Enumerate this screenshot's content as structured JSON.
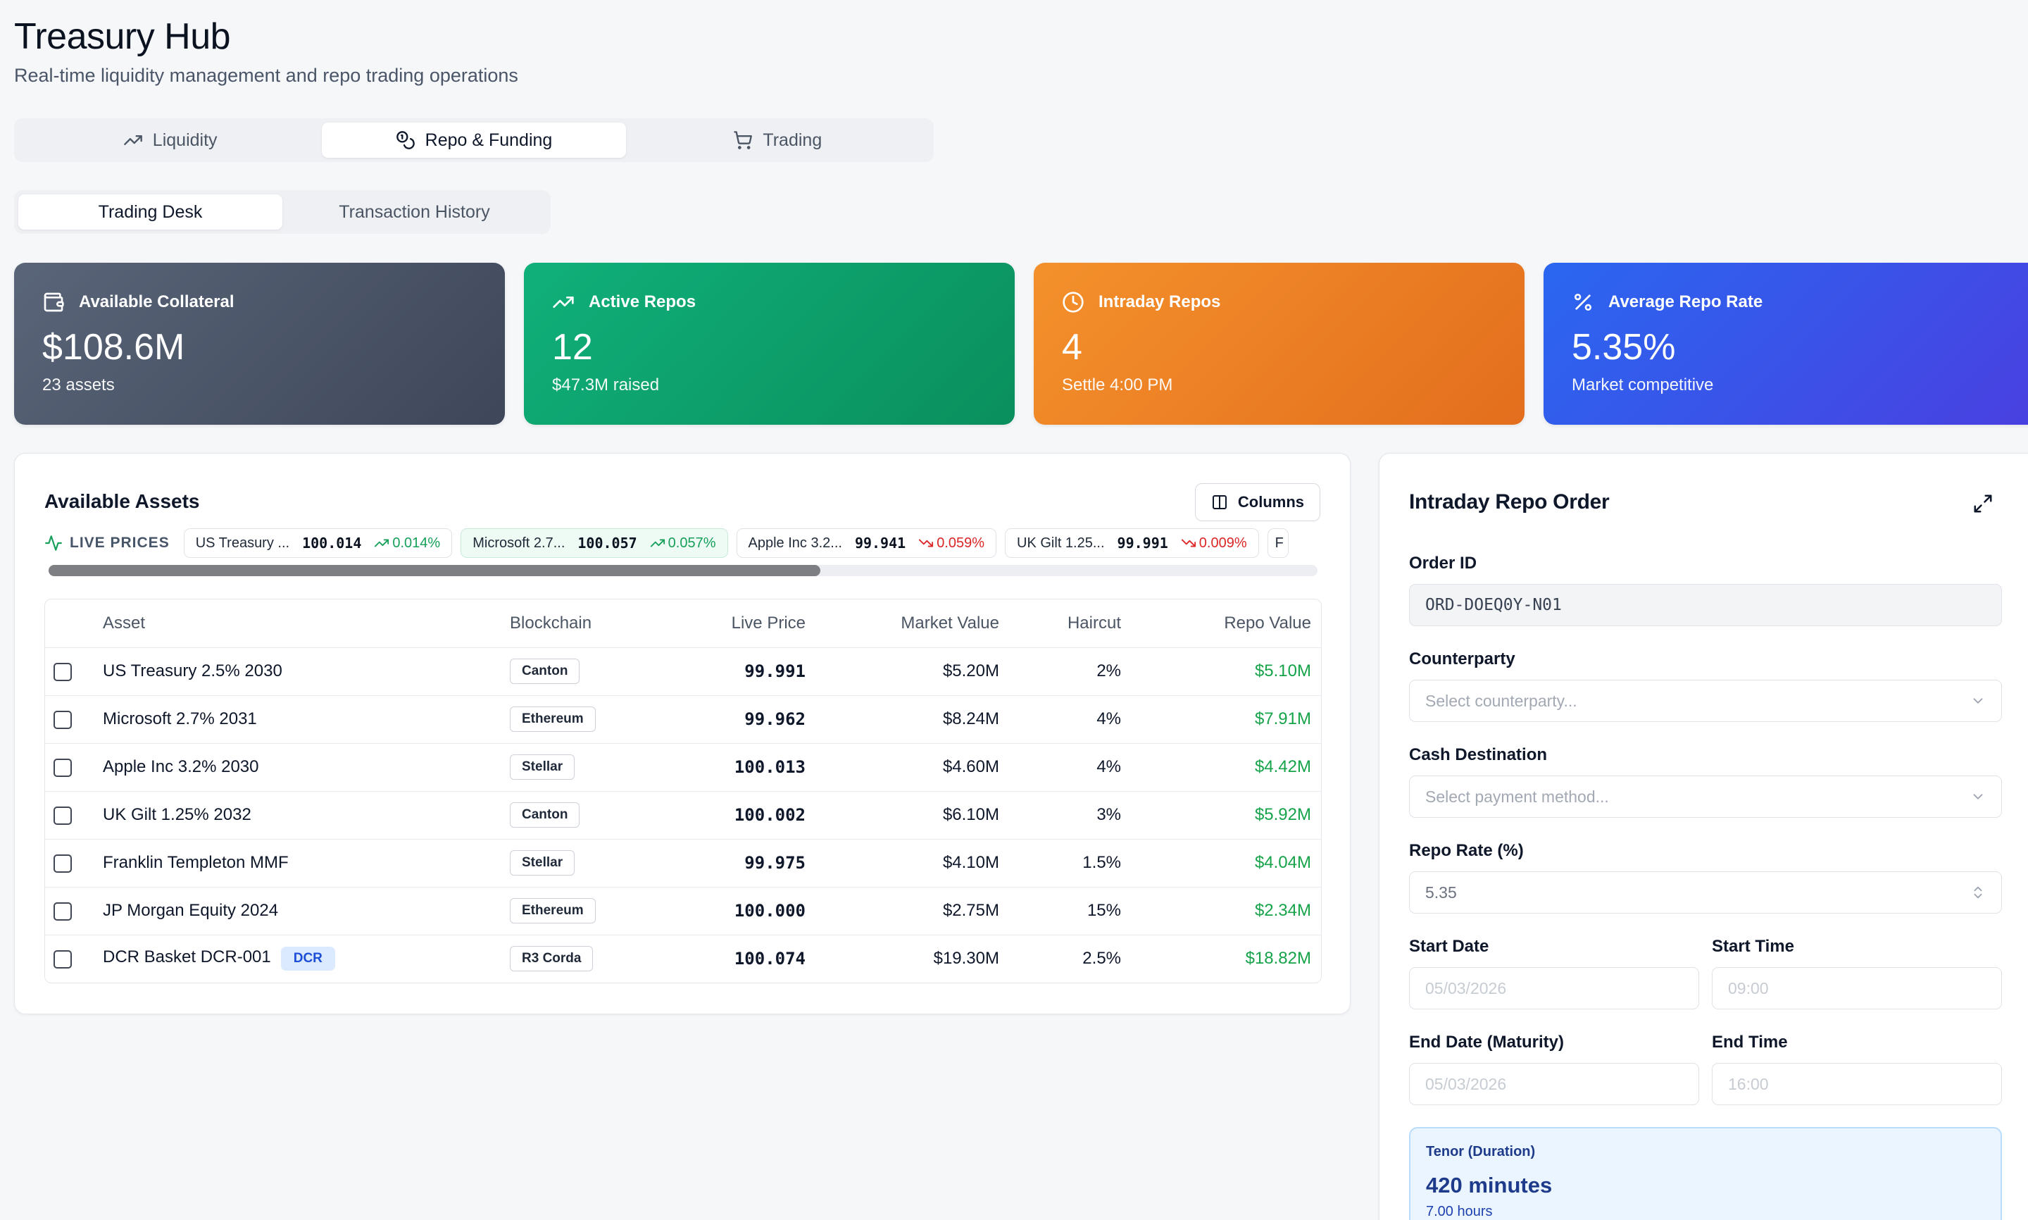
{
  "header": {
    "title": "Treasury Hub",
    "subtitle": "Real-time liquidity management and repo trading operations"
  },
  "main_tabs": [
    {
      "label": "Liquidity",
      "icon": "trending-up-icon"
    },
    {
      "label": "Repo & Funding",
      "icon": "coins-icon",
      "active": true
    },
    {
      "label": "Trading",
      "icon": "cart-icon"
    }
  ],
  "sub_tabs": [
    {
      "label": "Trading Desk",
      "active": true
    },
    {
      "label": "Transaction History"
    }
  ],
  "stats": {
    "collateral": {
      "title": "Available Collateral",
      "value": "$108.6M",
      "sub": "23 assets",
      "icon": "wallet-icon"
    },
    "active": {
      "title": "Active Repos",
      "value": "12",
      "sub": "$47.3M raised",
      "icon": "trending-up-icon"
    },
    "intraday": {
      "title": "Intraday Repos",
      "value": "4",
      "sub": "Settle 4:00 PM",
      "icon": "clock-icon"
    },
    "rate": {
      "title": "Average Repo Rate",
      "value": "5.35%",
      "sub": "Market competitive",
      "icon": "percent-icon"
    }
  },
  "assets": {
    "title": "Available Assets",
    "columns_label": "Columns",
    "live_label": "LIVE PRICES",
    "ticker": [
      {
        "name": "US Treasury ...",
        "price": "100.014",
        "change": "0.014%",
        "dir": "up"
      },
      {
        "name": "Microsoft 2.7...",
        "price": "100.057",
        "change": "0.057%",
        "dir": "up"
      },
      {
        "name": "Apple Inc 3.2...",
        "price": "99.941",
        "change": "0.059%",
        "dir": "down"
      },
      {
        "name": "UK Gilt 1.25...",
        "price": "99.991",
        "change": "0.009%",
        "dir": "down"
      },
      {
        "name": "F",
        "price": "",
        "change": "",
        "dir": ""
      }
    ],
    "headers": {
      "asset": "Asset",
      "blockchain": "Blockchain",
      "live_price": "Live Price",
      "market_value": "Market Value",
      "haircut": "Haircut",
      "repo_value": "Repo Value"
    },
    "rows": [
      {
        "asset": "US Treasury 2.5% 2030",
        "chain": "Canton",
        "live": "99.991",
        "mv": "$5.20M",
        "haircut": "2%",
        "repo": "$5.10M"
      },
      {
        "asset": "Microsoft 2.7% 2031",
        "chain": "Ethereum",
        "live": "99.962",
        "mv": "$8.24M",
        "haircut": "4%",
        "repo": "$7.91M"
      },
      {
        "asset": "Apple Inc 3.2% 2030",
        "chain": "Stellar",
        "live": "100.013",
        "mv": "$4.60M",
        "haircut": "4%",
        "repo": "$4.42M"
      },
      {
        "asset": "UK Gilt 1.25% 2032",
        "chain": "Canton",
        "live": "100.002",
        "mv": "$6.10M",
        "haircut": "3%",
        "repo": "$5.92M"
      },
      {
        "asset": "Franklin Templeton MMF",
        "chain": "Stellar",
        "live": "99.975",
        "mv": "$4.10M",
        "haircut": "1.5%",
        "repo": "$4.04M"
      },
      {
        "asset": "JP Morgan Equity 2024",
        "chain": "Ethereum",
        "live": "100.000",
        "mv": "$2.75M",
        "haircut": "15%",
        "repo": "$2.34M"
      },
      {
        "asset": "DCR Basket DCR-001",
        "tag": "DCR",
        "chain": "R3 Corda",
        "live": "100.074",
        "mv": "$19.30M",
        "haircut": "2.5%",
        "repo": "$18.82M"
      }
    ]
  },
  "order": {
    "title": "Intraday Repo Order",
    "order_id_label": "Order ID",
    "order_id_value": "ORD-DOEQ0Y-N01",
    "counterparty_label": "Counterparty",
    "counterparty_placeholder": "Select counterparty...",
    "cash_dest_label": "Cash Destination",
    "cash_dest_placeholder": "Select payment method...",
    "rate_label": "Repo Rate (%)",
    "rate_value": "5.35",
    "start_date_label": "Start Date",
    "start_date_value": "05/03/2026",
    "start_time_label": "Start Time",
    "start_time_value": "09:00",
    "end_date_label": "End Date (Maturity)",
    "end_date_value": "05/03/2026",
    "end_time_label": "End Time",
    "end_time_value": "16:00",
    "tenor_label": "Tenor (Duration)",
    "tenor_value": "420 minutes",
    "tenor_sub": "7.00 hours"
  }
}
